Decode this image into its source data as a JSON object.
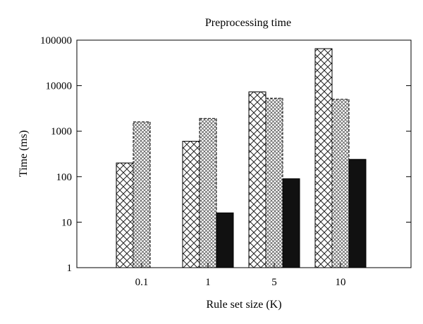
{
  "chart_data": {
    "type": "bar",
    "title": "Preprocessing time",
    "xlabel": "Rule set size (K)",
    "ylabel": "Time (ms)",
    "y_scale": "log",
    "ylim": [
      1,
      100000
    ],
    "yticks": [
      "1",
      "10",
      "100",
      "1000",
      "10000",
      "100000"
    ],
    "categories": [
      "0.1",
      "1",
      "5",
      "10"
    ],
    "series": [
      {
        "pattern": "crosshatch-coarse",
        "values": [
          200,
          600,
          7300,
          65000
        ]
      },
      {
        "pattern": "crosshatch-fine-dashed",
        "values": [
          1600,
          1900,
          5300,
          5000
        ]
      },
      {
        "pattern": "solid-black",
        "values": [
          null,
          16,
          90,
          240
        ]
      }
    ],
    "grid": false
  }
}
